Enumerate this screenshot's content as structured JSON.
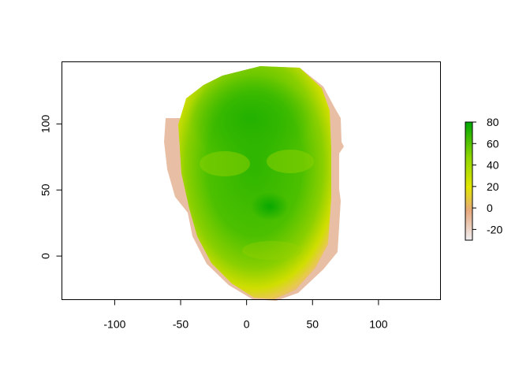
{
  "chart_data": {
    "type": "heatmap",
    "title": "",
    "xlabel": "",
    "ylabel": "",
    "xlim": [
      -140,
      147
    ],
    "ylim": [
      -33,
      147
    ],
    "xticks": [
      -100,
      -50,
      0,
      50,
      100
    ],
    "yticks": [
      0,
      50,
      100
    ],
    "grid": false,
    "legend": {
      "placement": "right",
      "range": [
        -30,
        80
      ],
      "ticks": [
        -20,
        0,
        20,
        40,
        60,
        80
      ]
    },
    "color_scale": [
      "#F0EDF0",
      "#E6A97D",
      "#E2E600",
      "#8FD600",
      "#00A600"
    ],
    "surface": {
      "description_of_values": "depth value per (x, y) point, face-shaped region",
      "nose_tip": {
        "x": 18,
        "y": 40,
        "value": 80
      },
      "forehead": {
        "x": 0,
        "y": 110,
        "value": 72
      },
      "center_face": {
        "x": 10,
        "y": 60,
        "value": 58
      },
      "face_edge": {
        "value": 20
      },
      "outer_sides": {
        "value": -10
      }
    }
  }
}
